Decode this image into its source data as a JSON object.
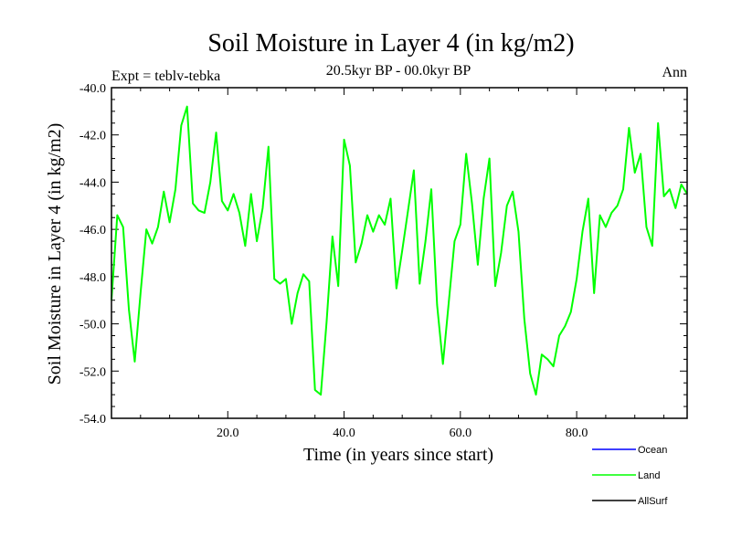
{
  "chart_data": {
    "type": "line",
    "title": "Soil Moisture in Layer 4 (in kg/m2)",
    "subtitle": "20.5kyr BP - 00.0kyr BP",
    "left_note": "Expt = teblv-tebka",
    "right_note": "Ann",
    "xlabel": "Time (in years since start)",
    "ylabel": "Soil Moisture in Layer 4 (in kg/m2)",
    "xlim": [
      0,
      99
    ],
    "ylim": [
      -54,
      -40
    ],
    "x_ticks": [
      20,
      40,
      60,
      80
    ],
    "x_tick_labels": [
      "20.0",
      "40.0",
      "60.0",
      "80.0"
    ],
    "y_ticks": [
      -54,
      -52,
      -50,
      -48,
      -46,
      -44,
      -42,
      -40
    ],
    "y_tick_labels": [
      "-54.0",
      "-52.0",
      "-50.0",
      "-48.0",
      "-46.0",
      "-44.0",
      "-42.0",
      "-40.0"
    ],
    "legend": {
      "placement": "bottom-right",
      "items": [
        {
          "name": "Ocean",
          "color": "#0000ff"
        },
        {
          "name": "Land",
          "color": "#00ff00"
        },
        {
          "name": "AllSurf",
          "color": "#000000"
        }
      ]
    },
    "series": [
      {
        "name": "Land",
        "color": "#00ff00",
        "x": [
          0,
          1,
          2,
          3,
          4,
          5,
          6,
          7,
          8,
          9,
          10,
          11,
          12,
          13,
          14,
          15,
          16,
          17,
          18,
          19,
          20,
          21,
          22,
          23,
          24,
          25,
          26,
          27,
          28,
          29,
          30,
          31,
          32,
          33,
          34,
          35,
          36,
          37,
          38,
          39,
          40,
          41,
          42,
          43,
          44,
          45,
          46,
          47,
          48,
          49,
          50,
          51,
          52,
          53,
          54,
          55,
          56,
          57,
          58,
          59,
          60,
          61,
          62,
          63,
          64,
          65,
          66,
          67,
          68,
          69,
          70,
          71,
          72,
          73,
          74,
          75,
          76,
          77,
          78,
          79,
          80,
          81,
          82,
          83,
          84,
          85,
          86,
          87,
          88,
          89,
          90,
          91,
          92,
          93,
          94,
          95,
          96,
          97,
          98,
          99
        ],
        "values": [
          -49.0,
          -45.4,
          -45.9,
          -49.4,
          -51.6,
          -48.7,
          -46.0,
          -46.6,
          -45.9,
          -44.4,
          -45.7,
          -44.3,
          -41.6,
          -40.8,
          -44.9,
          -45.2,
          -45.3,
          -44.0,
          -41.9,
          -44.8,
          -45.2,
          -44.5,
          -45.3,
          -46.7,
          -44.5,
          -46.5,
          -45.1,
          -42.5,
          -48.1,
          -48.3,
          -48.1,
          -50.0,
          -48.7,
          -47.9,
          -48.2,
          -52.8,
          -53.0,
          -49.9,
          -46.3,
          -48.4,
          -42.2,
          -43.3,
          -47.4,
          -46.6,
          -45.4,
          -46.1,
          -45.4,
          -45.8,
          -44.7,
          -48.5,
          -46.9,
          -45.2,
          -43.5,
          -48.3,
          -46.5,
          -44.3,
          -49.2,
          -51.7,
          -49.1,
          -46.5,
          -45.8,
          -42.8,
          -44.9,
          -47.5,
          -44.7,
          -43.0,
          -48.4,
          -47.0,
          -45.0,
          -44.4,
          -46.1,
          -49.8,
          -52.1,
          -53.0,
          -51.3,
          -51.5,
          -51.8,
          -50.5,
          -50.1,
          -49.5,
          -48.1,
          -46.1,
          -44.7,
          -48.7,
          -45.4,
          -45.9,
          -45.3,
          -45.0,
          -44.3,
          -41.7,
          -43.6,
          -42.8,
          -45.9,
          -46.7,
          -41.5,
          -44.6,
          -44.3,
          -45.1,
          -44.1,
          -44.5
        ]
      }
    ]
  }
}
